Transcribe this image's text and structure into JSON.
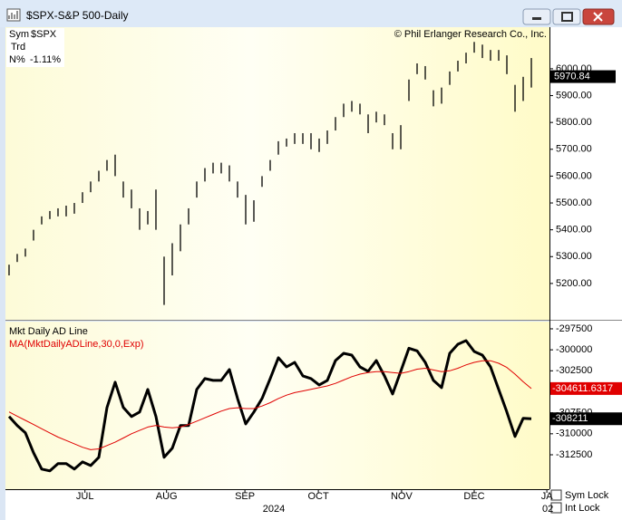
{
  "window": {
    "title": "$SPX-S&P 500-Daily"
  },
  "info": {
    "rows": [
      [
        "Sym",
        "$SPX"
      ],
      [
        "Trd"
      ],
      [
        "N%",
        "-1.11%"
      ]
    ]
  },
  "controls": {
    "sym_lock": "Sym Lock",
    "int_lock": "Int Lock"
  },
  "chart_data": [
    {
      "type": "range_bar",
      "annotation": "© Phil Erlanger Research Co., Inc.",
      "color": "#000000",
      "high": [
        5270,
        5310,
        5330,
        5400,
        5450,
        5470,
        5480,
        5490,
        5500,
        5540,
        5580,
        5620,
        5660,
        5680,
        5580,
        5550,
        5480,
        5470,
        5550,
        5300,
        5350,
        5420,
        5480,
        5580,
        5630,
        5650,
        5650,
        5640,
        5580,
        5530,
        5510,
        5600,
        5660,
        5730,
        5740,
        5760,
        5760,
        5760,
        5740,
        5770,
        5820,
        5870,
        5880,
        5870,
        5830,
        5840,
        5830,
        5760,
        5790,
        5960,
        6020,
        6010,
        5920,
        5930,
        5990,
        6030,
        6060,
        6100,
        6090,
        6070,
        6070,
        6050,
        5940,
        5970,
        6040
      ],
      "low": [
        5230,
        5280,
        5300,
        5360,
        5420,
        5440,
        5450,
        5450,
        5460,
        5500,
        5540,
        5580,
        5620,
        5600,
        5520,
        5480,
        5400,
        5420,
        5400,
        5120,
        5230,
        5320,
        5420,
        5520,
        5580,
        5610,
        5610,
        5580,
        5520,
        5420,
        5430,
        5560,
        5620,
        5680,
        5710,
        5720,
        5720,
        5700,
        5690,
        5720,
        5770,
        5820,
        5840,
        5830,
        5760,
        5800,
        5790,
        5700,
        5700,
        5880,
        5980,
        5960,
        5860,
        5870,
        5940,
        5990,
        6020,
        6060,
        6040,
        6030,
        6030,
        5980,
        5840,
        5880,
        5930
      ],
      "last_close": 5970.84,
      "xlim": [
        -0.22,
        66.22
      ],
      "ylim": [
        5068,
        6155
      ],
      "yticks": [
        {
          "value": 5200,
          "label": "5200.00"
        },
        {
          "value": 5300,
          "label": "5300.00"
        },
        {
          "value": 5400,
          "label": "5400.00"
        },
        {
          "value": 5500,
          "label": "5500.00"
        },
        {
          "value": 5600,
          "label": "5600.00"
        },
        {
          "value": 5700,
          "label": "5700.00"
        },
        {
          "value": 5800,
          "label": "5800.00"
        },
        {
          "value": 5900,
          "label": "5900.00"
        },
        {
          "value": 6000,
          "label": "6000.00"
        }
      ]
    },
    {
      "type": "line",
      "series": [
        {
          "name": "Mkt Daily AD Line",
          "color": "#000000",
          "width": 3,
          "values": [
            -307950,
            -309030,
            -309890,
            -312260,
            -314200,
            -314420,
            -313560,
            -313560,
            -314200,
            -313350,
            -313780,
            -312800,
            -306870,
            -303860,
            -306870,
            -307950,
            -307410,
            -304720,
            -307950,
            -312800,
            -311720,
            -309030,
            -309030,
            -304720,
            -303430,
            -303640,
            -303640,
            -302350,
            -305800,
            -308820,
            -307410,
            -305800,
            -303430,
            -300950,
            -302030,
            -301490,
            -303100,
            -303430,
            -304180,
            -303640,
            -301280,
            -300420,
            -300630,
            -302030,
            -302560,
            -301280,
            -303100,
            -305260,
            -302560,
            -299810,
            -300130,
            -301490,
            -303640,
            -304500,
            -300420,
            -299340,
            -298910,
            -300200,
            -300630,
            -302030,
            -304720,
            -307410,
            -310320,
            -308160,
            -308211
          ]
        },
        {
          "name": "MA(MktDailyADLine,30,0,Exp)",
          "color": "#e00000",
          "width": 1,
          "values": [
            -307400,
            -307900,
            -308400,
            -308900,
            -309400,
            -309900,
            -310400,
            -310800,
            -311200,
            -311600,
            -311900,
            -311800,
            -311400,
            -311000,
            -310500,
            -310000,
            -309600,
            -309200,
            -309000,
            -309200,
            -309300,
            -309200,
            -308900,
            -308500,
            -308100,
            -307700,
            -307300,
            -307000,
            -306900,
            -307000,
            -307000,
            -306700,
            -306300,
            -305800,
            -305400,
            -305100,
            -304900,
            -304700,
            -304500,
            -304300,
            -304000,
            -303600,
            -303200,
            -302900,
            -302700,
            -302600,
            -302600,
            -302700,
            -302800,
            -302600,
            -302300,
            -302200,
            -302400,
            -302600,
            -302500,
            -302200,
            -301800,
            -301500,
            -301300,
            -301300,
            -301600,
            -302100,
            -302900,
            -303800,
            -304611.6317
          ]
        }
      ],
      "xlim": [
        -0.22,
        66.22
      ],
      "xticks": [
        {
          "value": 9.3,
          "label": "JUL"
        },
        {
          "value": 19.3,
          "label": "AUG"
        },
        {
          "value": 28.9,
          "label": "SEP"
        },
        {
          "value": 37.9,
          "label": "OCT"
        },
        {
          "value": 48.1,
          "label": "NOV"
        },
        {
          "value": 57,
          "label": "DEC"
        },
        {
          "value": 65.9,
          "label": "JA"
        }
      ],
      "year_label": "2024",
      "next_year_label": "02",
      "ylim": [
        -316600,
        -296640
      ],
      "yticks": [
        -312500,
        -310000,
        -307500,
        -305000,
        -302500,
        -300000,
        -297500
      ]
    }
  ]
}
